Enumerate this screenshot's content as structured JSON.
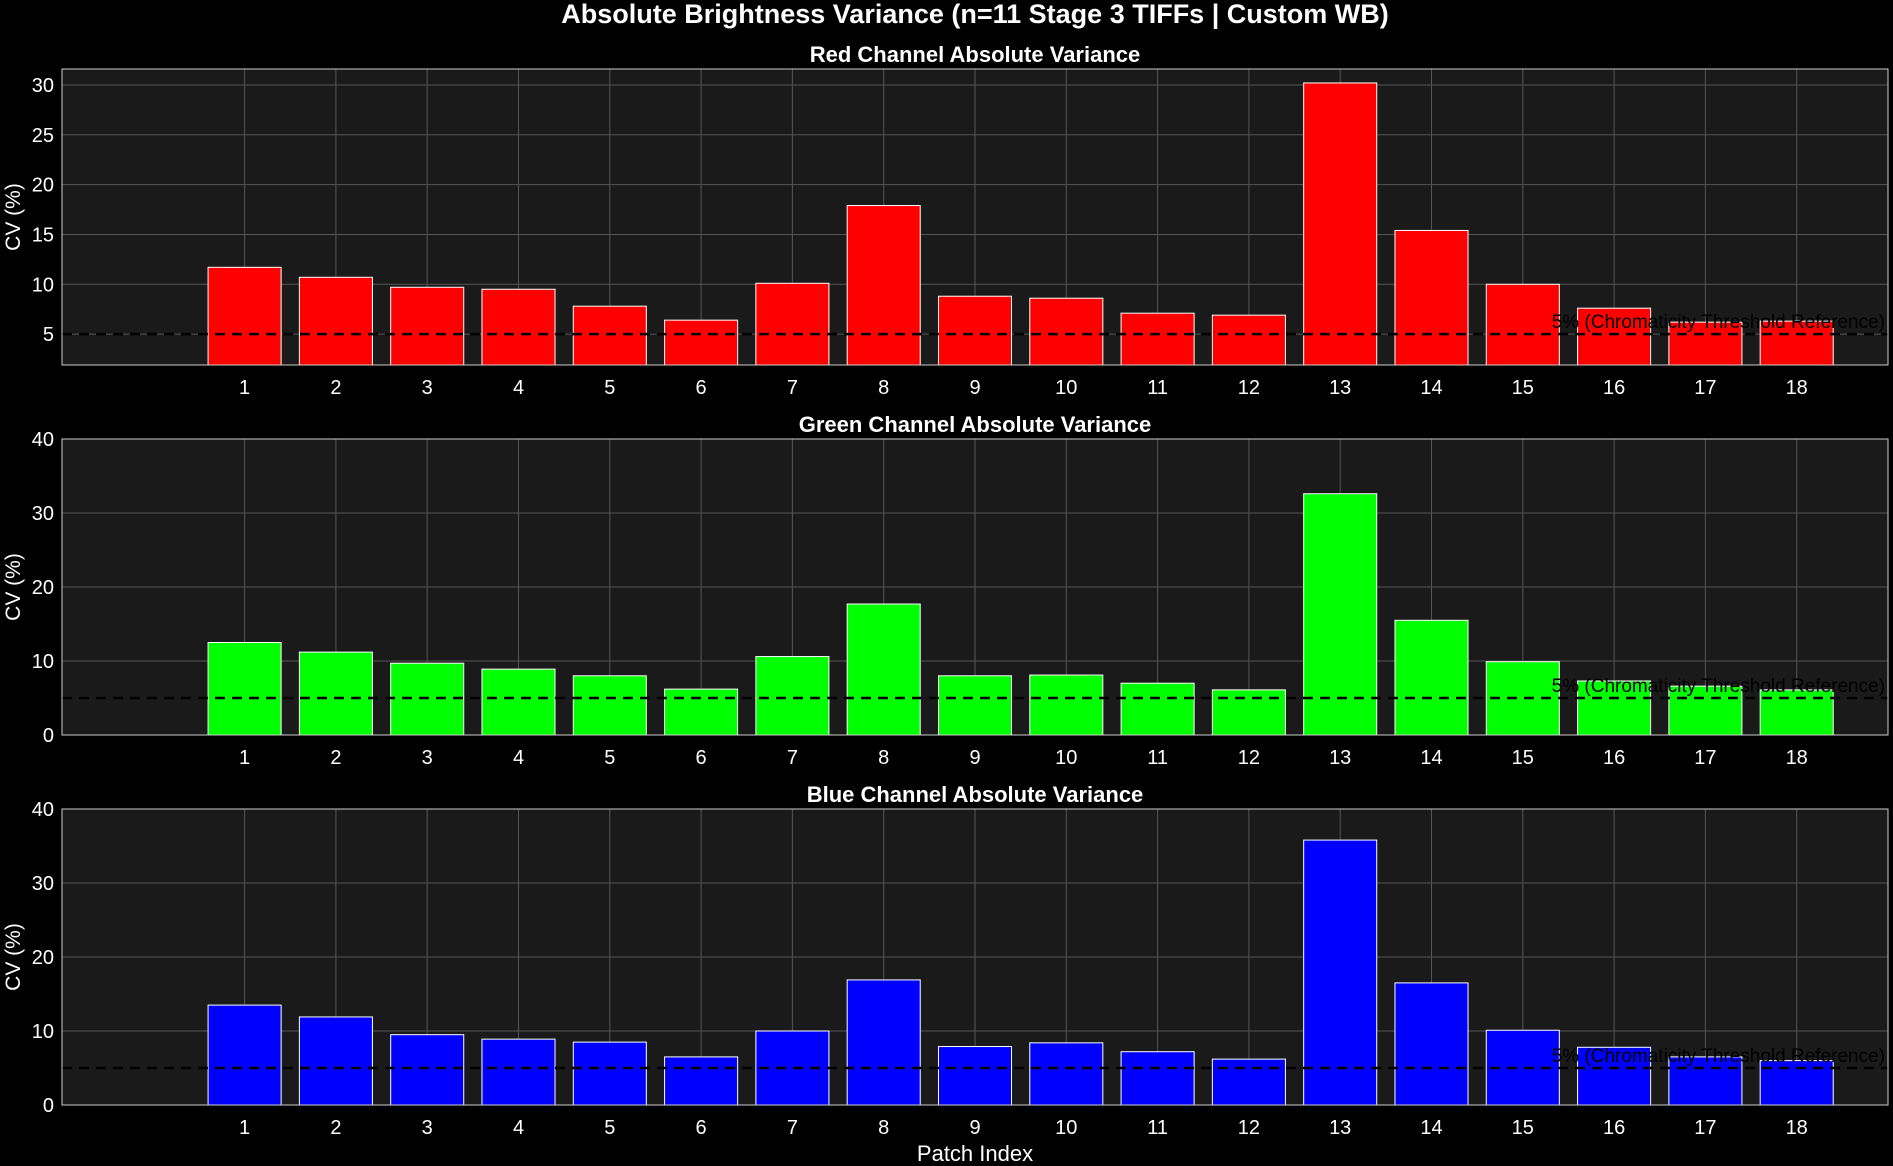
{
  "suptitle": "Absolute Brightness Variance (n=11 Stage 3 TIFFs | Custom WB)",
  "xlabel": "Patch Index",
  "colors": {
    "background": "#000000",
    "axes_face": "#1a1a1a",
    "grid": "#555555",
    "text": "#ffffff",
    "threshold_line": "#000000",
    "bar_edge": "#ffffff"
  },
  "chart_data": [
    {
      "type": "bar",
      "title": "Red Channel Absolute Variance",
      "ylabel": "CV (%)",
      "xlabel": "",
      "categories": [
        "1",
        "2",
        "3",
        "4",
        "5",
        "6",
        "7",
        "8",
        "9",
        "10",
        "11",
        "12",
        "13",
        "14",
        "15",
        "16",
        "17",
        "18"
      ],
      "values": [
        11.7,
        10.7,
        9.7,
        9.5,
        7.8,
        6.4,
        10.1,
        17.9,
        8.8,
        8.6,
        7.1,
        6.9,
        30.2,
        15.4,
        10.0,
        7.6,
        6.2,
        6.3
      ],
      "bar_color": "#ff0000",
      "ylim": [
        1.9,
        31.6
      ],
      "yticks": [
        5,
        10,
        15,
        20,
        25,
        30
      ],
      "threshold": {
        "value": 5,
        "label": "5% (Chromaticity Threshold Reference)"
      },
      "grid": true
    },
    {
      "type": "bar",
      "title": "Green Channel Absolute Variance",
      "ylabel": "CV (%)",
      "xlabel": "",
      "categories": [
        "1",
        "2",
        "3",
        "4",
        "5",
        "6",
        "7",
        "8",
        "9",
        "10",
        "11",
        "12",
        "13",
        "14",
        "15",
        "16",
        "17",
        "18"
      ],
      "values": [
        12.5,
        11.2,
        9.7,
        8.9,
        8.0,
        6.2,
        10.6,
        17.7,
        8.0,
        8.1,
        7.0,
        6.1,
        32.6,
        15.5,
        9.9,
        7.3,
        6.6,
        6.1
      ],
      "bar_color": "#00ff00",
      "ylim": [
        0,
        40
      ],
      "yticks": [
        0,
        10,
        20,
        30,
        40
      ],
      "threshold": {
        "value": 5,
        "label": "5% (Chromaticity Threshold Reference)"
      },
      "grid": true
    },
    {
      "type": "bar",
      "title": "Blue Channel Absolute Variance",
      "ylabel": "CV (%)",
      "xlabel": "Patch Index",
      "categories": [
        "1",
        "2",
        "3",
        "4",
        "5",
        "6",
        "7",
        "8",
        "9",
        "10",
        "11",
        "12",
        "13",
        "14",
        "15",
        "16",
        "17",
        "18"
      ],
      "values": [
        13.5,
        11.9,
        9.5,
        8.9,
        8.5,
        6.5,
        10.0,
        16.9,
        7.9,
        8.4,
        7.2,
        6.2,
        35.8,
        16.5,
        10.1,
        7.8,
        6.5,
        6.0
      ],
      "bar_color": "#0000ff",
      "ylim": [
        0,
        40
      ],
      "yticks": [
        0,
        10,
        20,
        30,
        40
      ],
      "threshold": {
        "value": 5,
        "label": "5% (Chromaticity Threshold Reference)"
      },
      "grid": true
    }
  ]
}
